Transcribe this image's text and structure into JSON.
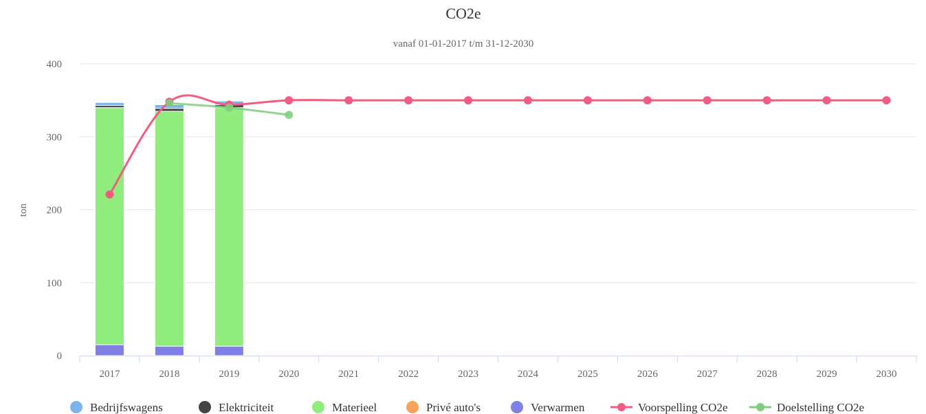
{
  "chart_data": {
    "type": "bar",
    "title": "CO2e",
    "subtitle": "vanaf 01-01-2017 t/m 31-12-2030",
    "ylabel": "ton",
    "xlabel": "",
    "ylim": [
      0,
      400
    ],
    "yticks": [
      0,
      100,
      200,
      300,
      400
    ],
    "grid": true,
    "legend_position": "bottom",
    "categories": [
      "2017",
      "2018",
      "2019",
      "2020",
      "2021",
      "2022",
      "2023",
      "2024",
      "2025",
      "2026",
      "2027",
      "2028",
      "2029",
      "2030"
    ],
    "stacked": true,
    "series": [
      {
        "name": "Verwarmen",
        "type": "bar",
        "color": "#7f7fe6",
        "values": [
          15,
          13,
          13,
          null,
          null,
          null,
          null,
          null,
          null,
          null,
          null,
          null,
          null,
          null
        ]
      },
      {
        "name": "Privé auto's",
        "type": "bar",
        "color": "#f7a35c",
        "values": [
          0,
          0,
          0,
          null,
          null,
          null,
          null,
          null,
          null,
          null,
          null,
          null,
          null,
          null
        ]
      },
      {
        "name": "Materieel",
        "type": "bar",
        "color": "#90ed7d",
        "values": [
          325,
          322,
          327,
          null,
          null,
          null,
          null,
          null,
          null,
          null,
          null,
          null,
          null,
          null
        ]
      },
      {
        "name": "Elektriciteit",
        "type": "bar",
        "color": "#434348",
        "values": [
          3,
          4,
          4,
          null,
          null,
          null,
          null,
          null,
          null,
          null,
          null,
          null,
          null,
          null
        ]
      },
      {
        "name": "Bedrijfswagens",
        "type": "bar",
        "color": "#7cb5ec",
        "values": [
          4,
          5,
          5,
          null,
          null,
          null,
          null,
          null,
          null,
          null,
          null,
          null,
          null,
          null
        ]
      },
      {
        "name": "Voorspelling CO2e",
        "type": "line",
        "color": "#f15c80",
        "values": [
          221,
          348,
          344,
          350,
          350,
          350,
          350,
          350,
          350,
          350,
          350,
          350,
          350,
          350
        ]
      },
      {
        "name": "Doelstelling CO2e",
        "type": "line",
        "color": "#7fcc7f",
        "values": [
          null,
          346,
          340,
          330,
          null,
          null,
          null,
          null,
          null,
          null,
          null,
          null,
          null,
          null
        ]
      }
    ],
    "legend_order": [
      "Bedrijfswagens",
      "Elektriciteit",
      "Materieel",
      "Privé auto's",
      "Verwarmen",
      "Voorspelling CO2e",
      "Doelstelling CO2e"
    ]
  }
}
